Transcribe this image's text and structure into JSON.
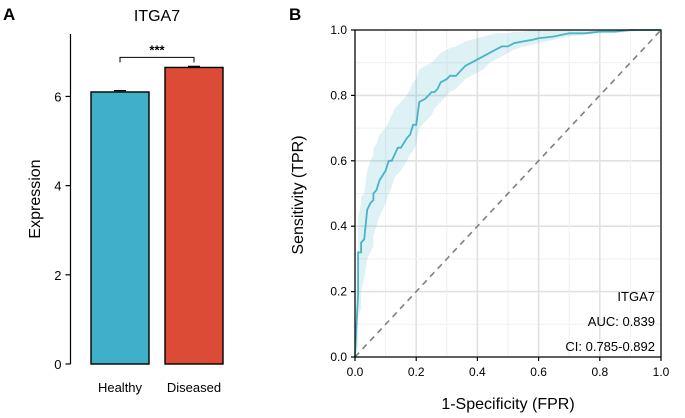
{
  "chart_data": [
    {
      "panel": "A",
      "type": "bar",
      "title": "ITGA7",
      "xlabel": "",
      "ylabel": "Expression",
      "categories": [
        "Healthy",
        "Diseased"
      ],
      "values": [
        6.1,
        6.65
      ],
      "errors": [
        0.03,
        0.025
      ],
      "colors": [
        "#3fb0c8",
        "#dc4b36"
      ],
      "ylim": [
        0,
        7.4
      ],
      "yticks": [
        0,
        2,
        4,
        6
      ],
      "significance": "***"
    },
    {
      "panel": "B",
      "type": "line",
      "title": "",
      "xlabel": "1-Specificity (FPR)",
      "ylabel": "Sensitivity (TPR)",
      "xlim": [
        0,
        1
      ],
      "ylim": [
        0,
        1
      ],
      "xticks": [
        0.0,
        0.2,
        0.4,
        0.6,
        0.8,
        1.0
      ],
      "yticks": [
        0.0,
        0.2,
        0.4,
        0.6,
        0.8,
        1.0
      ],
      "grid": true,
      "series": [
        {
          "name": "ITGA7",
          "color": "#4ab3c7",
          "x": [
            0,
            0.005,
            0.01,
            0.01,
            0.02,
            0.02,
            0.03,
            0.04,
            0.05,
            0.06,
            0.06,
            0.07,
            0.08,
            0.1,
            0.11,
            0.12,
            0.13,
            0.14,
            0.15,
            0.17,
            0.18,
            0.19,
            0.2,
            0.21,
            0.23,
            0.25,
            0.26,
            0.27,
            0.28,
            0.3,
            0.31,
            0.33,
            0.35,
            0.36,
            0.38,
            0.4,
            0.42,
            0.44,
            0.46,
            0.48,
            0.5,
            0.52,
            0.55,
            0.58,
            0.6,
            0.65,
            0.7,
            0.75,
            0.8,
            0.85,
            0.9,
            0.95,
            1.0
          ],
          "y": [
            0,
            0.1,
            0.19,
            0.32,
            0.32,
            0.35,
            0.36,
            0.45,
            0.47,
            0.48,
            0.5,
            0.51,
            0.54,
            0.57,
            0.6,
            0.6,
            0.62,
            0.64,
            0.64,
            0.67,
            0.68,
            0.71,
            0.71,
            0.78,
            0.79,
            0.81,
            0.81,
            0.82,
            0.84,
            0.85,
            0.86,
            0.86,
            0.88,
            0.89,
            0.9,
            0.91,
            0.92,
            0.93,
            0.94,
            0.95,
            0.95,
            0.96,
            0.965,
            0.97,
            0.975,
            0.98,
            0.99,
            0.99,
            0.995,
            0.995,
            1.0,
            1.0,
            1.0
          ],
          "ci_lower": [
            0,
            0.02,
            0.04,
            0.12,
            0.15,
            0.2,
            0.24,
            0.3,
            0.32,
            0.34,
            0.37,
            0.4,
            0.43,
            0.47,
            0.5,
            0.52,
            0.55,
            0.56,
            0.57,
            0.6,
            0.62,
            0.63,
            0.65,
            0.7,
            0.72,
            0.74,
            0.76,
            0.77,
            0.78,
            0.8,
            0.81,
            0.82,
            0.84,
            0.85,
            0.86,
            0.87,
            0.88,
            0.9,
            0.91,
            0.92,
            0.93,
            0.94,
            0.95,
            0.955,
            0.96,
            0.97,
            0.98,
            0.985,
            0.99,
            0.99,
            0.995,
            1.0,
            1.0
          ],
          "ci_upper": [
            0,
            0.18,
            0.3,
            0.43,
            0.47,
            0.49,
            0.5,
            0.57,
            0.6,
            0.62,
            0.64,
            0.65,
            0.68,
            0.7,
            0.72,
            0.74,
            0.76,
            0.77,
            0.78,
            0.8,
            0.82,
            0.84,
            0.85,
            0.88,
            0.89,
            0.9,
            0.91,
            0.92,
            0.93,
            0.94,
            0.945,
            0.95,
            0.96,
            0.965,
            0.97,
            0.975,
            0.98,
            0.985,
            0.99,
            0.99,
            0.99,
            0.995,
            0.995,
            1.0,
            1.0,
            1.0,
            1.0,
            1.0,
            1.0,
            1.0,
            1.0,
            1.0,
            1.0
          ]
        },
        {
          "name": "reference",
          "color": "#808080",
          "style": "dashed",
          "x": [
            0,
            1
          ],
          "y": [
            0,
            1
          ]
        }
      ],
      "legend_position": "bottom-right",
      "annotations": [
        "ITGA7",
        "AUC: 0.839",
        "CI: 0.785-0.892"
      ]
    }
  ]
}
